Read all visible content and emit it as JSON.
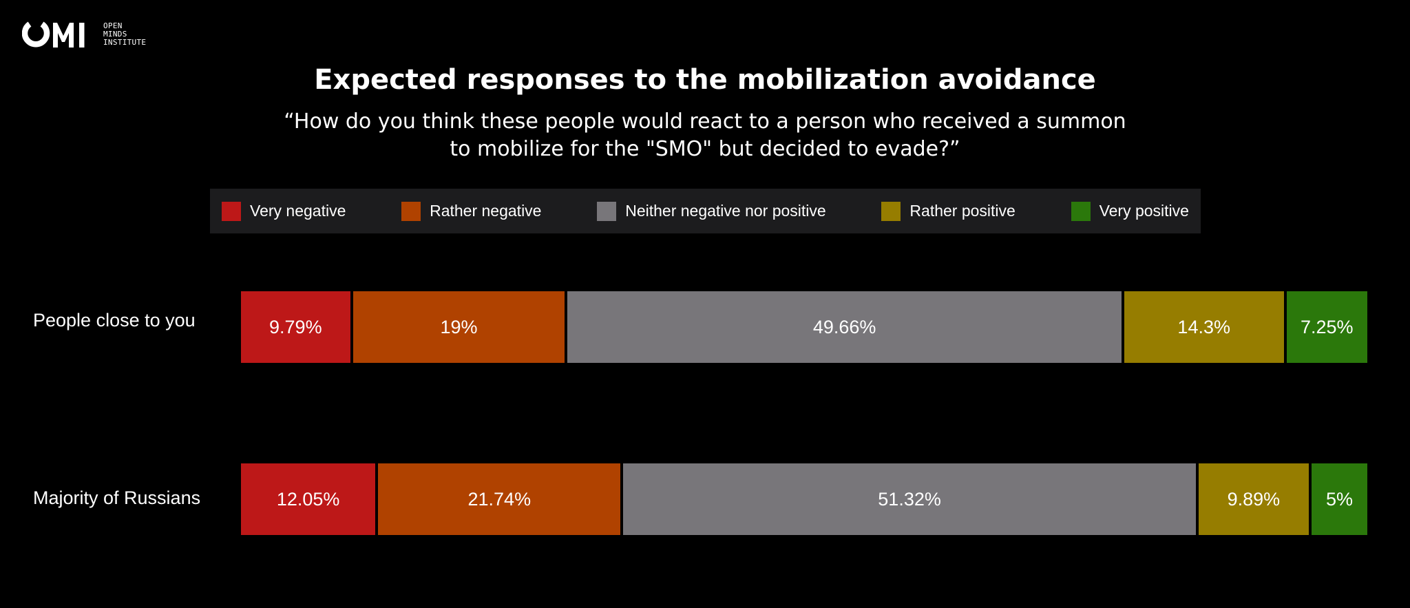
{
  "logo": {
    "mark": "OMI",
    "line1": "OPEN",
    "line2": "MINDS",
    "line3": "INSTITUTE"
  },
  "chart_data": {
    "type": "bar",
    "orientation": "horizontal",
    "stacked": true,
    "normalized_to": 100,
    "title": "Expected responses to the mobilization avoidance",
    "subtitle_line1": "“How do you think these people would react to a person who received a summon",
    "subtitle_line2": "to mobilize for the \"SMO\" but decided to evade?”",
    "legend_position": "top",
    "categories": [
      "People close to you",
      "Majority of Russians"
    ],
    "series": [
      {
        "name": "Very negative",
        "color": "#bd1818",
        "values": [
          9.79,
          12.05
        ],
        "labels": [
          "9.79%",
          "12.05%"
        ]
      },
      {
        "name": "Rather negative",
        "color": "#b04200",
        "values": [
          19,
          21.74
        ],
        "labels": [
          "19%",
          "21.74%"
        ]
      },
      {
        "name": "Neither negative nor positive",
        "color": "#78767a",
        "values": [
          49.66,
          51.32
        ],
        "labels": [
          "49.66%",
          "51.32%"
        ]
      },
      {
        "name": "Rather positive",
        "color": "#967d00",
        "values": [
          14.3,
          9.89
        ],
        "labels": [
          "14.3%",
          "9.89%"
        ]
      },
      {
        "name": "Very positive",
        "color": "#2b780b",
        "values": [
          7.25,
          5
        ],
        "labels": [
          "7.25%",
          "5%"
        ]
      }
    ]
  }
}
